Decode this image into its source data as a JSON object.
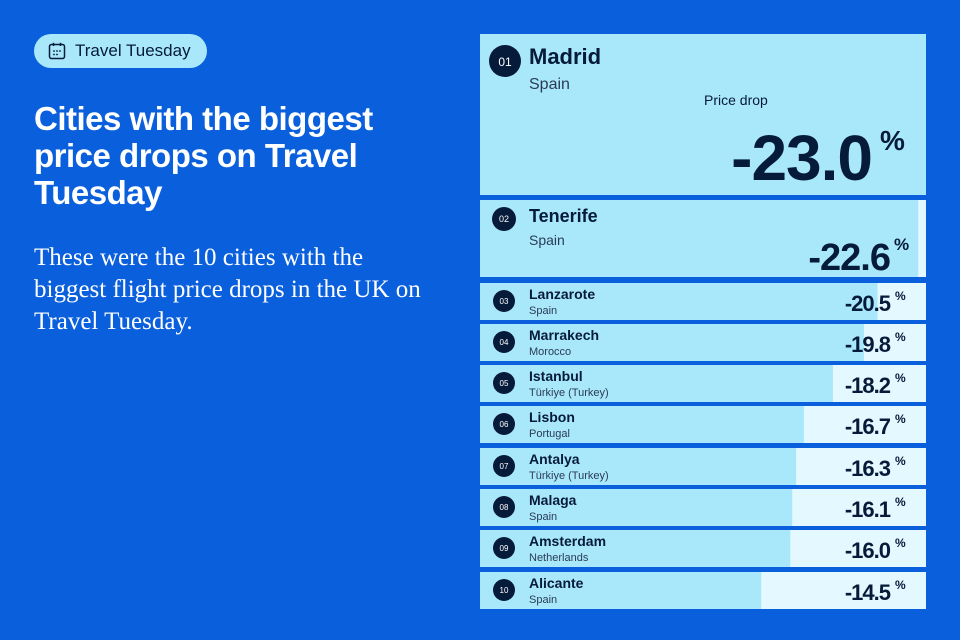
{
  "tag": {
    "label": "Travel Tuesday",
    "icon": "calendar-icon"
  },
  "headline": "Cities with the biggest price drops on Travel Tuesday",
  "description": "These were the 10 cities with the biggest flight price drops in the UK on Travel Tuesday.",
  "colors": {
    "background": "#0a5fdc",
    "bar": "#a9e8fb",
    "track": "#e3f8ff",
    "rank_badge": "#061a3a",
    "text_dark": "#061a3a"
  },
  "chart_data": {
    "type": "bar",
    "orientation": "horizontal",
    "value_label": "Price drop",
    "unit": "%",
    "scale_max": 23.0,
    "rows": [
      {
        "rank": "01",
        "city": "Madrid",
        "country": "Spain",
        "value": -23.0,
        "value_text": "-23.0"
      },
      {
        "rank": "02",
        "city": "Tenerife",
        "country": "Spain",
        "value": -22.6,
        "value_text": "-22.6"
      },
      {
        "rank": "03",
        "city": "Lanzarote",
        "country": "Spain",
        "value": -20.5,
        "value_text": "-20.5"
      },
      {
        "rank": "04",
        "city": "Marrakech",
        "country": "Morocco",
        "value": -19.8,
        "value_text": "-19.8"
      },
      {
        "rank": "05",
        "city": "Istanbul",
        "country": "Türkiye (Turkey)",
        "value": -18.2,
        "value_text": "-18.2"
      },
      {
        "rank": "06",
        "city": "Lisbon",
        "country": "Portugal",
        "value": -16.7,
        "value_text": "-16.7"
      },
      {
        "rank": "07",
        "city": "Antalya",
        "country": "Türkiye (Turkey)",
        "value": -16.3,
        "value_text": "-16.3"
      },
      {
        "rank": "08",
        "city": "Malaga",
        "country": "Spain",
        "value": -16.1,
        "value_text": "-16.1"
      },
      {
        "rank": "09",
        "city": "Amsterdam",
        "country": "Netherlands",
        "value": -16.0,
        "value_text": "-16.0"
      },
      {
        "rank": "10",
        "city": "Alicante",
        "country": "Spain",
        "value": -14.5,
        "value_text": "-14.5"
      }
    ]
  }
}
